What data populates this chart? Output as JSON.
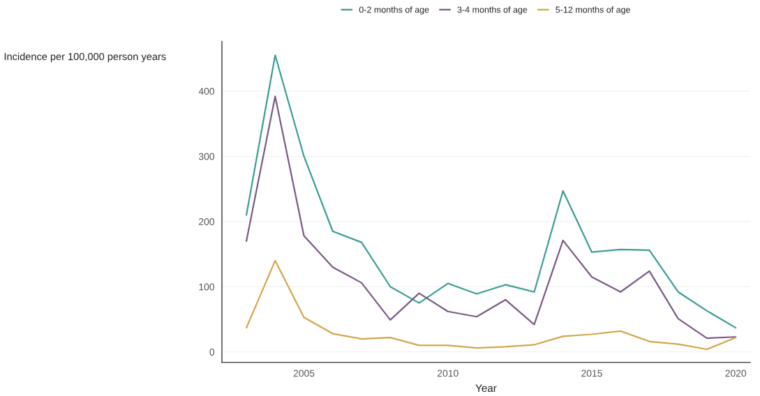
{
  "chart_data": {
    "type": "line",
    "xlabel": "Year",
    "ylabel": "Incidence per 100,000 person years",
    "x": [
      2003,
      2004,
      2005,
      2006,
      2007,
      2008,
      2009,
      2010,
      2011,
      2012,
      2013,
      2014,
      2015,
      2016,
      2017,
      2018,
      2019,
      2020
    ],
    "series": [
      {
        "name": "0-2 months of age",
        "color": "#3a9e94",
        "values": [
          210,
          455,
          300,
          185,
          168,
          100,
          75,
          105,
          89,
          103,
          92,
          247,
          153,
          157,
          156,
          92,
          63,
          37
        ]
      },
      {
        "name": "3-4 months of age",
        "color": "#7b5a86",
        "values": [
          170,
          392,
          178,
          130,
          106,
          49,
          90,
          62,
          54,
          80,
          42,
          171,
          115,
          92,
          124,
          51,
          21,
          23
        ]
      },
      {
        "name": "5-12 months of age",
        "color": "#d4a64a",
        "values": [
          37,
          140,
          53,
          28,
          20,
          22,
          10,
          10,
          6,
          8,
          11,
          24,
          27,
          32,
          16,
          12,
          4,
          22
        ]
      }
    ],
    "xlim": [
      2002.15,
      2020.5
    ],
    "xticks": [
      2005,
      2010,
      2015,
      2020
    ],
    "ylim": [
      -16,
      476
    ],
    "yticks": [
      0,
      100,
      200,
      300,
      400
    ],
    "grid": "y",
    "legend": "top",
    "line_style": "solid",
    "marker": "none"
  }
}
